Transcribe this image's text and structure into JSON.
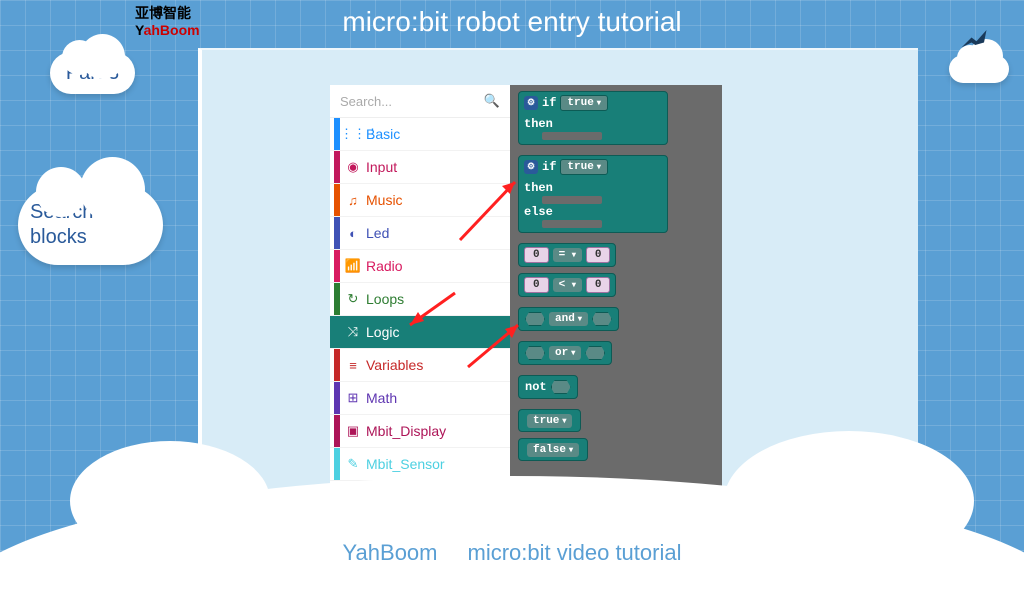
{
  "header": {
    "title": "micro:bit robot entry tutorial",
    "logo_cn": "亚博智能",
    "logo_en_prefix": "Y",
    "logo_en_rest": "ahBoom"
  },
  "clouds": {
    "part_label": "Part 3",
    "search_label": "Search for blocks"
  },
  "footer": {
    "left": "YahBoom",
    "right": "micro:bit video tutorial"
  },
  "editor": {
    "search_placeholder": "Search...",
    "categories": [
      {
        "label": "Basic",
        "color": "#1e90ff",
        "icon": "⋮⋮⋮"
      },
      {
        "label": "Input",
        "color": "#c2185b",
        "icon": "◉"
      },
      {
        "label": "Music",
        "color": "#e65100",
        "icon": "♫"
      },
      {
        "label": "Led",
        "color": "#3f51b5",
        "icon": "◐"
      },
      {
        "label": "Radio",
        "color": "#d81b60",
        "icon": "📶"
      },
      {
        "label": "Loops",
        "color": "#2e7d32",
        "icon": "↻"
      },
      {
        "label": "Logic",
        "color": "#187f78",
        "icon": "⤨",
        "selected": true
      },
      {
        "label": "Variables",
        "color": "#c62828",
        "icon": "≡"
      },
      {
        "label": "Math",
        "color": "#5e35b1",
        "icon": "⊞"
      },
      {
        "label": "Mbit_Display",
        "color": "#ad1457",
        "icon": "▣"
      },
      {
        "label": "Mbit_Sensor",
        "color": "#4dd0e1",
        "icon": "✎"
      }
    ],
    "blocks": {
      "if": "if",
      "then": "then",
      "else": "else",
      "true": "true",
      "false": "false",
      "and": "and",
      "or": "or",
      "not": "not",
      "zero": "0",
      "eq": "=",
      "lt": "<"
    }
  },
  "colors": {
    "background": "#5a9fd4",
    "panel": "#d8ecf7",
    "workspace": "#6b6b6b",
    "logic_block": "#187f78",
    "cloud_text": "#2a5a9a"
  }
}
